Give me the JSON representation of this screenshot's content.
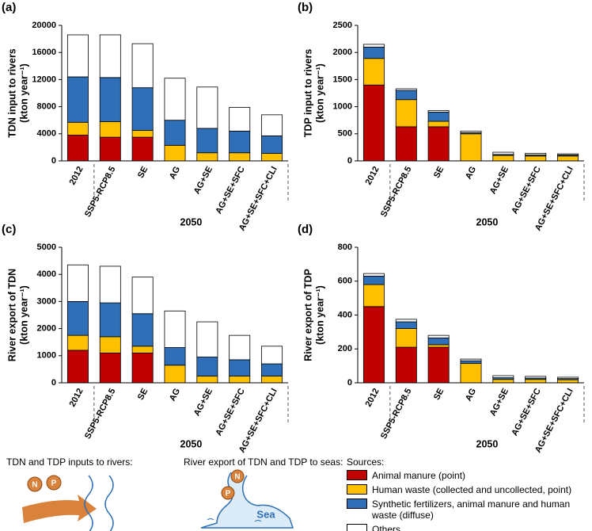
{
  "chart_data": [
    {
      "type": "bar",
      "stacked": true,
      "panel": "(a)",
      "ylabel": [
        "TDN input to rivers",
        "(kton year⁻¹)"
      ],
      "group_label": "2050",
      "categories": [
        "2012",
        "SSP5-RCP8.5",
        "SE",
        "AG",
        "AG+SE",
        "AG+SE+SFC",
        "AG+SE+SFC+CLI"
      ],
      "ylim": [
        0,
        20000
      ],
      "yticks": [
        0,
        4000,
        8000,
        12000,
        16000,
        20000
      ],
      "series": [
        {
          "name": "Animal manure (point)",
          "color": "#c00000",
          "values": [
            3800,
            3500,
            3500,
            0,
            0,
            0,
            0
          ]
        },
        {
          "name": "Human waste (collected and uncollected, point)",
          "color": "#ffc000",
          "values": [
            1900,
            2300,
            1000,
            2300,
            1200,
            1200,
            1100
          ]
        },
        {
          "name": "Synthetic fertilizers, animal manure and human waste (diffuse)",
          "color": "#2e6fb7",
          "values": [
            6700,
            6500,
            6300,
            3700,
            3600,
            3200,
            2600
          ]
        },
        {
          "name": "Others",
          "color": "#ffffff",
          "values": [
            6200,
            6300,
            6500,
            6200,
            6100,
            3500,
            3100
          ]
        }
      ]
    },
    {
      "type": "bar",
      "stacked": true,
      "panel": "(b)",
      "ylabel": [
        "TDP input to rivers",
        "(kton year⁻¹)"
      ],
      "group_label": "2050",
      "categories": [
        "2012",
        "SSP5-RCP8.5",
        "SE",
        "AG",
        "AG+SE",
        "AG+SE+SFC",
        "AG+SE+SFC+CLI"
      ],
      "ylim": [
        0,
        2500
      ],
      "yticks": [
        0,
        500,
        1000,
        1500,
        2000,
        2500
      ],
      "series": [
        {
          "name": "Animal manure (point)",
          "color": "#c00000",
          "values": [
            1400,
            630,
            630,
            0,
            0,
            0,
            0
          ]
        },
        {
          "name": "Human waste (collected and uncollected, point)",
          "color": "#ffc000",
          "values": [
            490,
            500,
            100,
            500,
            100,
            90,
            90
          ]
        },
        {
          "name": "Synthetic fertilizers, animal manure and human waste (diffuse)",
          "color": "#2e6fb7",
          "values": [
            210,
            170,
            170,
            20,
            20,
            20,
            20
          ]
        },
        {
          "name": "Others",
          "color": "#ffffff",
          "values": [
            50,
            30,
            30,
            30,
            40,
            30,
            20
          ]
        }
      ]
    },
    {
      "type": "bar",
      "stacked": true,
      "panel": "(c)",
      "ylabel": [
        "River export of TDN",
        "(kton year⁻¹)"
      ],
      "group_label": "2050",
      "categories": [
        "2012",
        "SSP5-RCP8.5",
        "SE",
        "AG",
        "AG+SE",
        "AG+SE+SFC",
        "AG+SE+SFC+CLI"
      ],
      "ylim": [
        0,
        5000
      ],
      "yticks": [
        0,
        1000,
        2000,
        3000,
        4000,
        5000
      ],
      "series": [
        {
          "name": "Animal manure (point)",
          "color": "#c00000",
          "values": [
            1200,
            1100,
            1100,
            0,
            0,
            0,
            0
          ]
        },
        {
          "name": "Human waste (collected and uncollected, point)",
          "color": "#ffc000",
          "values": [
            550,
            600,
            250,
            650,
            250,
            250,
            250
          ]
        },
        {
          "name": "Synthetic fertilizers, animal manure and human waste (diffuse)",
          "color": "#2e6fb7",
          "values": [
            1250,
            1250,
            1200,
            650,
            700,
            600,
            450
          ]
        },
        {
          "name": "Others",
          "color": "#ffffff",
          "values": [
            1350,
            1350,
            1350,
            1350,
            1300,
            900,
            650
          ]
        }
      ]
    },
    {
      "type": "bar",
      "stacked": true,
      "panel": "(d)",
      "ylabel": [
        "River export of TDP",
        "(kton year⁻¹)"
      ],
      "group_label": "2050",
      "categories": [
        "2012",
        "SSP5-RCP8.5",
        "SE",
        "AG",
        "AG+SE",
        "AG+SE+SFC",
        "AG+SE+SFC+CLI"
      ],
      "ylim": [
        0,
        800
      ],
      "yticks": [
        0,
        200,
        400,
        600,
        800
      ],
      "series": [
        {
          "name": "Animal manure (point)",
          "color": "#c00000",
          "values": [
            450,
            210,
            210,
            0,
            0,
            0,
            0
          ]
        },
        {
          "name": "Human waste (collected and uncollected, point)",
          "color": "#ffc000",
          "values": [
            130,
            110,
            15,
            115,
            20,
            20,
            18
          ]
        },
        {
          "name": "Synthetic fertilizers, animal manure and human waste (diffuse)",
          "color": "#2e6fb7",
          "values": [
            50,
            40,
            40,
            15,
            10,
            8,
            7
          ]
        },
        {
          "name": "Others",
          "color": "#ffffff",
          "values": [
            15,
            15,
            15,
            10,
            12,
            10,
            8
          ]
        }
      ]
    }
  ],
  "legend_title": "Sources:",
  "illustrations": {
    "inputs_label": "TDN and TDP inputs to rivers:",
    "export_label": "River export of TDN and TDP to seas:",
    "n": "N",
    "p": "P",
    "sea": "Sea"
  }
}
